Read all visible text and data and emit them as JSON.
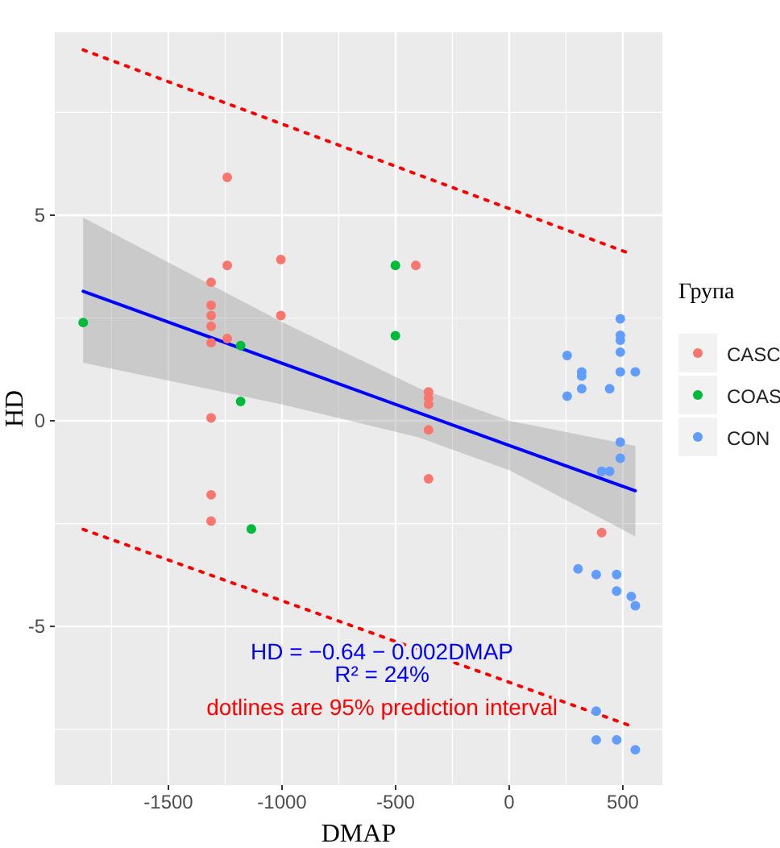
{
  "chart_data": {
    "type": "scatter",
    "xlabel": "DMAP",
    "ylabel": "HD",
    "legend_title": "Група",
    "legend": "right",
    "grid": true,
    "marker": "circle",
    "xlim": [
      -2000,
      674
    ],
    "ylim": [
      -8.86,
      9.45
    ],
    "xticks": [
      -1500,
      -1000,
      -500,
      0,
      500
    ],
    "yticks": [
      -5,
      0,
      5
    ],
    "annotations": [
      "HD = −0.64 − 0.002DMAP",
      "R² = 24%",
      "dotlines are 95% prediction interval"
    ],
    "series": [
      {
        "name": "CASC",
        "color": "#f8766d",
        "x": [
          -1241,
          -1241,
          -1005,
          -1312,
          -1312,
          -1312,
          -1312,
          -1312,
          -1241,
          -1005,
          -1312,
          -1312,
          -1312,
          -411,
          -355,
          -355,
          -355,
          -355,
          -355,
          407
        ],
        "values": [
          5.92,
          3.78,
          3.92,
          3.37,
          2.81,
          2.56,
          2.3,
          1.9,
          2.0,
          2.56,
          0.07,
          -1.8,
          -2.44,
          3.78,
          0.7,
          0.55,
          0.4,
          -0.22,
          -1.41,
          -2.72
        ]
      },
      {
        "name": "COAS",
        "color": "#00ba38",
        "x": [
          -1875,
          -1182,
          -1182,
          -1135,
          -501,
          -501
        ],
        "values": [
          2.39,
          1.83,
          0.47,
          -2.63,
          3.78,
          2.07
        ]
      },
      {
        "name": "CON",
        "color": "#619cff",
        "x": [
          489,
          489,
          489,
          489,
          489,
          555,
          255,
          319,
          319,
          319,
          255,
          442,
          489,
          489,
          407,
          442,
          303,
          383,
          473,
          473,
          537,
          555,
          383,
          383,
          473,
          555
        ],
        "values": [
          2.48,
          2.08,
          1.96,
          1.67,
          1.19,
          1.19,
          1.59,
          1.19,
          1.09,
          0.78,
          0.6,
          0.78,
          -0.52,
          -0.91,
          -1.23,
          -1.23,
          -3.6,
          -3.74,
          -3.74,
          -4.14,
          -4.27,
          -4.5,
          -7.06,
          -7.76,
          -7.76,
          -8.0
        ]
      },
      {
        "type": "line",
        "marker": "none",
        "color": "#0000ff",
        "line_style": "solid",
        "x": [
          -1875,
          -1000,
          -400,
          0,
          555
        ],
        "values": [
          3.15,
          1.4,
          0.2,
          -0.6,
          -1.7
        ],
        "lower": [
          1.41,
          0.4,
          -0.4,
          -1.2,
          -2.81
        ],
        "upper": [
          4.94,
          2.4,
          0.8,
          0.0,
          -0.61
        ]
      },
      {
        "type": "line",
        "marker": "none",
        "color": "#ff0000",
        "line_style": "dotted",
        "x": [
          -1875,
          530
        ],
        "values": [
          9.02,
          4.07
        ]
      },
      {
        "type": "line",
        "marker": "none",
        "color": "#ff0000",
        "line_style": "dotted",
        "x": [
          -1875,
          530
        ],
        "values": [
          -2.64,
          -7.41
        ]
      }
    ]
  }
}
